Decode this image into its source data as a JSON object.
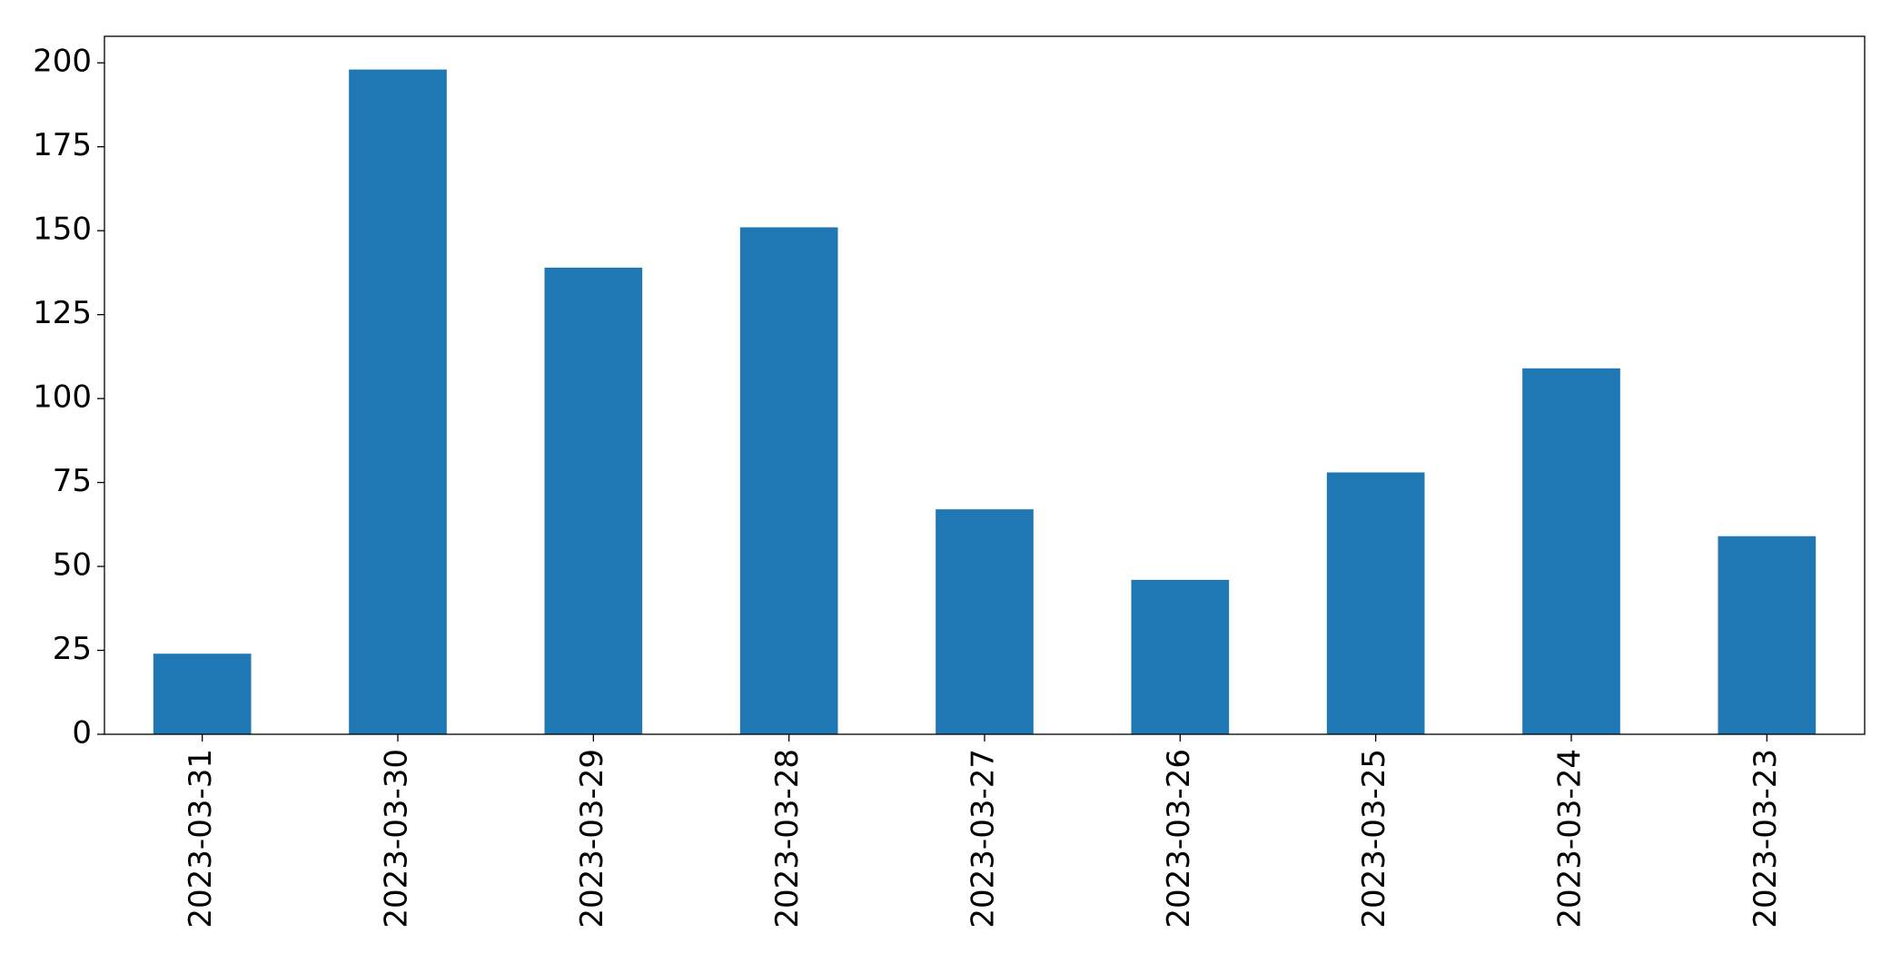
{
  "chart_data": {
    "type": "bar",
    "categories": [
      "2023-03-31",
      "2023-03-30",
      "2023-03-29",
      "2023-03-28",
      "2023-03-27",
      "2023-03-26",
      "2023-03-25",
      "2023-03-24",
      "2023-03-23"
    ],
    "values": [
      24,
      198,
      139,
      151,
      67,
      46,
      78,
      109,
      59
    ],
    "color": "#1f77b4",
    "ylim": [
      0,
      207.9
    ],
    "yticks": [
      0,
      25,
      50,
      75,
      100,
      125,
      150,
      175,
      200
    ]
  }
}
